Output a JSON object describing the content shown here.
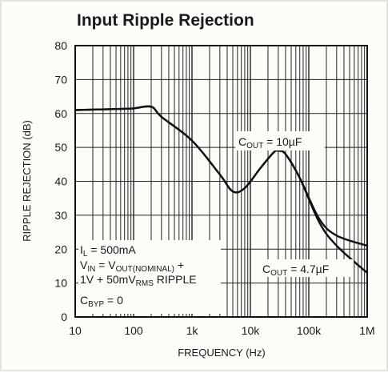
{
  "chart_data": {
    "type": "line",
    "title": "Input Ripple Rejection",
    "xlabel": "FREQUENCY (Hz)",
    "ylabel": "RIPPLE REJECTION (dB)",
    "x_scale": "log",
    "xlim": [
      10,
      1000000
    ],
    "ylim": [
      0,
      80
    ],
    "grid": true,
    "x_ticks": [
      "10",
      "100",
      "1k",
      "10k",
      "100k",
      "1M"
    ],
    "y_ticks": [
      "0",
      "10",
      "20",
      "30",
      "40",
      "50",
      "60",
      "70",
      "80"
    ],
    "series": [
      {
        "name": "C_OUT = 10µF",
        "x": [
          10,
          50,
          100,
          200,
          300,
          1000,
          3000,
          5000,
          8000,
          15000,
          25000,
          30000,
          40000,
          70000,
          150000,
          300000,
          1000000
        ],
        "y": [
          61,
          61.3,
          61.5,
          62,
          59,
          52,
          42,
          37,
          38,
          44,
          48.5,
          49,
          48,
          41,
          29,
          24,
          21
        ]
      },
      {
        "name": "C_OUT = 4.7µF",
        "x": [
          10,
          50,
          100,
          200,
          300,
          1000,
          3000,
          5000,
          8000,
          15000,
          25000,
          30000,
          40000,
          70000,
          150000,
          300000,
          1000000
        ],
        "y": [
          61,
          61.3,
          61.5,
          62,
          59,
          52,
          42,
          37,
          38,
          44,
          48.5,
          49,
          48,
          41,
          28,
          21,
          13
        ]
      }
    ],
    "annotations": {
      "cout_10": {
        "main": "C",
        "sub": "OUT",
        "rest": " = 10µF"
      },
      "cout_47": {
        "main": "C",
        "sub": "OUT",
        "rest": " = 4.7µF"
      },
      "il": {
        "main": "I",
        "sub": "L",
        "rest": " = 500mA"
      },
      "vin": {
        "a": "V",
        "a_sub": "IN",
        "b": " = V",
        "b_sub": "OUT(NOMINAL)",
        "c": " +"
      },
      "ripple": {
        "a": "1V + 50mV",
        "a_sub": "RMS",
        "b": " RIPPLE"
      },
      "cbyp": {
        "main": "C",
        "sub": "BYP",
        "rest": " = 0"
      }
    }
  }
}
